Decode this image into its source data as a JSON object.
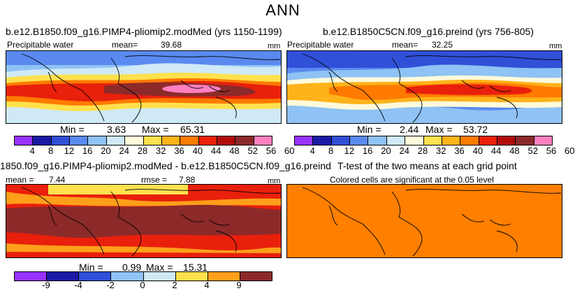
{
  "page_title": "ANN",
  "colors": {
    "levels13": [
      "#9933ff",
      "#1a1aa6",
      "#3050d8",
      "#5a8af0",
      "#8fc2f5",
      "#cfe9f7",
      "#fffadb",
      "#ffe14d",
      "#ffb31a",
      "#ff7a00",
      "#e8200c",
      "#b30c0c",
      "#8c2a2a",
      "#ff80c0"
    ],
    "diff_palette": [
      "#9933ff",
      "#1a1aa6",
      "#3050d8",
      "#5a8af0",
      "#8fc2f5",
      "#cfe9f7",
      "#fffadb",
      "#ffe14d",
      "#ff9f1a",
      "#e8200c",
      "#8c2a2a",
      "#ff80c0"
    ],
    "ttest_fill": "#ff7f00",
    "land_outline": "#000000"
  },
  "panels": {
    "top_left": {
      "title": "b.e12.B1850.f09_g16.PIMP4-pliomip2.modMed (yrs 1150-1199)",
      "variable": "Precipitable water",
      "mean_label": "mean=",
      "mean_value": "39.68",
      "units": "mm",
      "min_label": "Min =",
      "min_value": "3.63",
      "max_label": "Max =",
      "max_value": "65.31",
      "ticks": [
        "4",
        "8",
        "12",
        "16",
        "20",
        "24",
        "28",
        "32",
        "36",
        "40",
        "44",
        "48",
        "52",
        "56",
        "60"
      ]
    },
    "top_right": {
      "title": "b.e12.B1850C5CN.f09_g16.preind (yrs 756-805)",
      "variable": "Precipitable water",
      "mean_label": "mean=",
      "mean_value": "32.25",
      "units": "mm",
      "min_label": "Min =",
      "min_value": "2.44",
      "max_label": "Max =",
      "max_value": "53.72",
      "ticks": [
        "4",
        "8",
        "12",
        "16",
        "20",
        "24",
        "28",
        "32",
        "36",
        "40",
        "44",
        "48",
        "52",
        "56",
        "60"
      ]
    },
    "bottom_left": {
      "title": "1850.f09_g16.PIMP4-pliomip2.modMed - b.e12.B1850C5CN.f09_g16.preind",
      "mean_label": "mean =",
      "mean_value": "7.44",
      "rmse_label": "rmse =",
      "rmse_value": "7.88",
      "units": "mm",
      "min_label": "Min =",
      "min_value": "0.99",
      "max_label": "Max =",
      "max_value": "15.31",
      "ticks": [
        "-9",
        "-4",
        "-2",
        "0",
        "2",
        "4",
        "9"
      ]
    },
    "bottom_right": {
      "title": "T-test of the two means at each grid point",
      "subtitle": "Colored cells are significant at the 0.05 level"
    }
  },
  "chart_data": [
    {
      "type": "heatmap",
      "title": "b.e12.B1850.f09_g16.PIMP4-pliomip2.modMed (yrs 1150-1199)",
      "variable": "Precipitable water",
      "units": "mm",
      "mean": 39.68,
      "min": 3.63,
      "max": 65.31,
      "contour_levels": [
        4,
        8,
        12,
        16,
        20,
        24,
        28,
        32,
        36,
        40,
        44,
        48,
        52,
        56,
        60
      ]
    },
    {
      "type": "heatmap",
      "title": "b.e12.B1850C5CN.f09_g16.preind (yrs 756-805)",
      "variable": "Precipitable water",
      "units": "mm",
      "mean": 32.25,
      "min": 2.44,
      "max": 53.72,
      "contour_levels": [
        4,
        8,
        12,
        16,
        20,
        24,
        28,
        32,
        36,
        40,
        44,
        48,
        52,
        56,
        60
      ]
    },
    {
      "type": "heatmap",
      "title": "1850.f09_g16.PIMP4-pliomip2.modMed - b.e12.B1850C5CN.f09_g16.preind",
      "units": "mm",
      "mean": 7.44,
      "rmse": 7.88,
      "min": 0.99,
      "max": 15.31,
      "contour_levels": [
        -9,
        -4,
        -2,
        0,
        2,
        4,
        9
      ]
    },
    {
      "type": "heatmap",
      "title": "T-test of the two means at each grid point",
      "subtitle": "Colored cells are significant at the 0.05 level",
      "significance_level": 0.05
    }
  ]
}
